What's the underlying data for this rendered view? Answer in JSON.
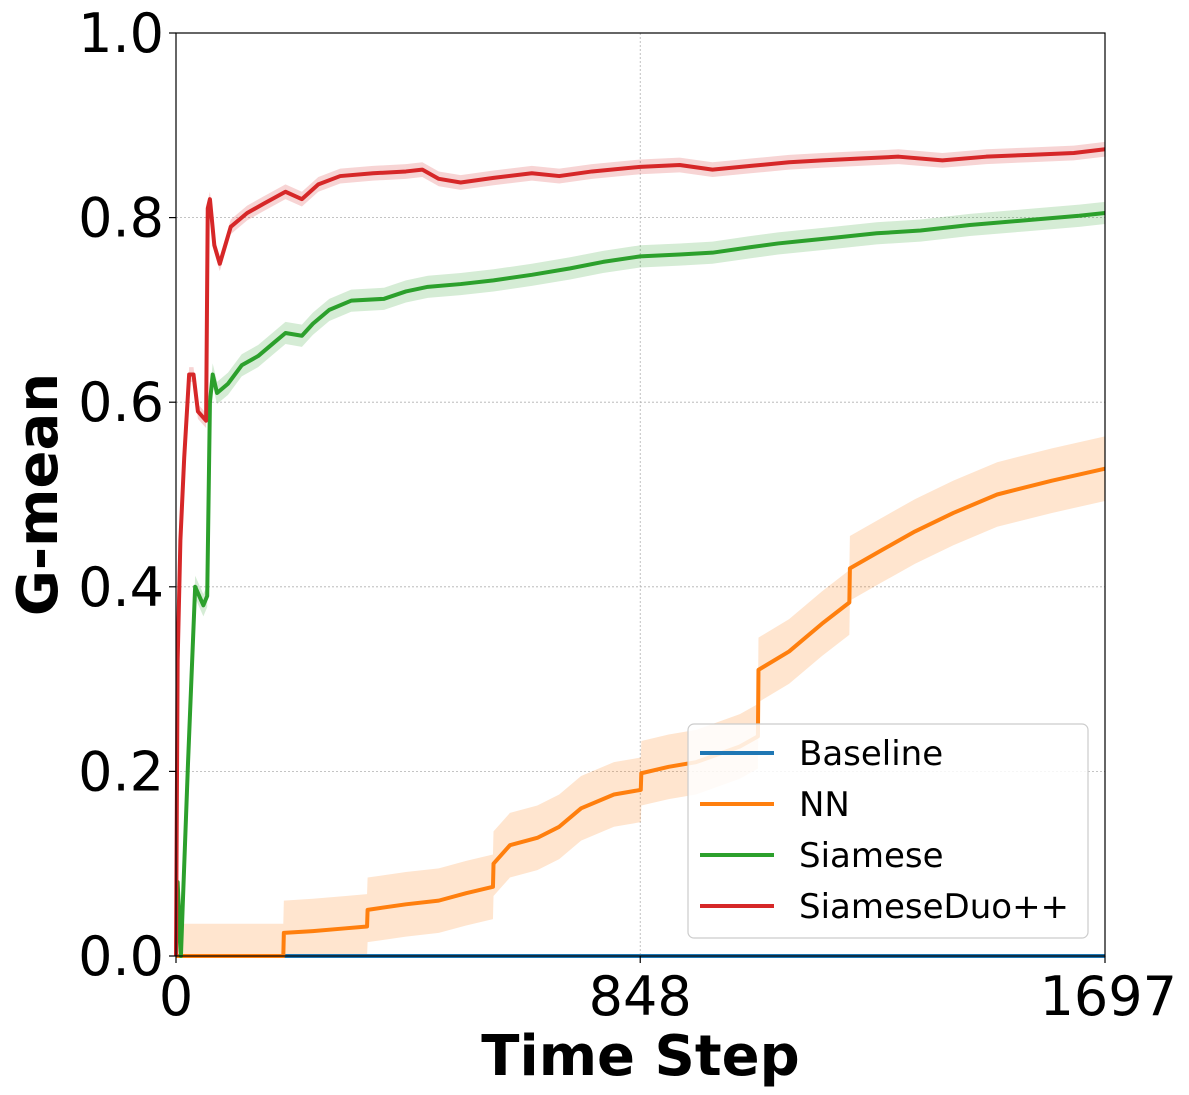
{
  "chart_data": {
    "type": "line",
    "title": "",
    "xlabel": "Time Step",
    "ylabel": "G-mean",
    "xlim": [
      0,
      1697
    ],
    "ylim": [
      0,
      1.0
    ],
    "xticks": [
      0,
      848,
      1697
    ],
    "xtick_labels": [
      "0",
      "848",
      "1697"
    ],
    "yticks": [
      0,
      0.2,
      0.4,
      0.6,
      0.8,
      1.0
    ],
    "ytick_labels": [
      "0.0",
      "0.2",
      "0.4",
      "0.6",
      "0.8",
      "1.0"
    ],
    "grid": true,
    "legend_position": "lower-right",
    "series": [
      {
        "name": "Baseline",
        "color": "#1f77b4",
        "band": 0,
        "points": [
          [
            0,
            0.0
          ],
          [
            1697,
            0.0
          ]
        ]
      },
      {
        "name": "NN",
        "color": "#ff7f0e",
        "band": 0.035,
        "points": [
          [
            0,
            0.0
          ],
          [
            196,
            0.0
          ],
          [
            197,
            0.025
          ],
          [
            250,
            0.027
          ],
          [
            310,
            0.03
          ],
          [
            349,
            0.032
          ],
          [
            350,
            0.05
          ],
          [
            420,
            0.056
          ],
          [
            480,
            0.06
          ],
          [
            530,
            0.068
          ],
          [
            579,
            0.075
          ],
          [
            580,
            0.1
          ],
          [
            610,
            0.12
          ],
          [
            660,
            0.128
          ],
          [
            700,
            0.14
          ],
          [
            740,
            0.16
          ],
          [
            800,
            0.175
          ],
          [
            849,
            0.18
          ],
          [
            850,
            0.198
          ],
          [
            900,
            0.205
          ],
          [
            950,
            0.21
          ],
          [
            1030,
            0.227
          ],
          [
            1063,
            0.238
          ],
          [
            1064,
            0.31
          ],
          [
            1120,
            0.33
          ],
          [
            1180,
            0.36
          ],
          [
            1230,
            0.383
          ],
          [
            1231,
            0.42
          ],
          [
            1290,
            0.44
          ],
          [
            1350,
            0.46
          ],
          [
            1420,
            0.48
          ],
          [
            1500,
            0.5
          ],
          [
            1600,
            0.515
          ],
          [
            1697,
            0.528
          ]
        ]
      },
      {
        "name": "Siamese",
        "color": "#2ca02c",
        "band": 0.012,
        "points": [
          [
            0,
            0.0
          ],
          [
            3,
            0.08
          ],
          [
            9,
            0.0
          ],
          [
            12,
            0.05
          ],
          [
            22,
            0.21
          ],
          [
            35,
            0.4
          ],
          [
            50,
            0.38
          ],
          [
            57,
            0.39
          ],
          [
            62,
            0.6
          ],
          [
            67,
            0.63
          ],
          [
            75,
            0.61
          ],
          [
            95,
            0.62
          ],
          [
            120,
            0.64
          ],
          [
            150,
            0.65
          ],
          [
            180,
            0.665
          ],
          [
            200,
            0.675
          ],
          [
            230,
            0.672
          ],
          [
            250,
            0.685
          ],
          [
            280,
            0.7
          ],
          [
            320,
            0.71
          ],
          [
            380,
            0.712
          ],
          [
            420,
            0.72
          ],
          [
            460,
            0.725
          ],
          [
            520,
            0.728
          ],
          [
            580,
            0.732
          ],
          [
            650,
            0.738
          ],
          [
            720,
            0.745
          ],
          [
            780,
            0.752
          ],
          [
            848,
            0.758
          ],
          [
            920,
            0.76
          ],
          [
            980,
            0.762
          ],
          [
            1050,
            0.768
          ],
          [
            1100,
            0.772
          ],
          [
            1150,
            0.775
          ],
          [
            1200,
            0.778
          ],
          [
            1280,
            0.783
          ],
          [
            1360,
            0.786
          ],
          [
            1450,
            0.792
          ],
          [
            1550,
            0.797
          ],
          [
            1650,
            0.802
          ],
          [
            1697,
            0.805
          ]
        ]
      },
      {
        "name": "SiameseDuo++",
        "color": "#d62728",
        "band": 0.008,
        "points": [
          [
            0,
            0.0
          ],
          [
            3,
            0.32
          ],
          [
            8,
            0.45
          ],
          [
            15,
            0.54
          ],
          [
            24,
            0.63
          ],
          [
            32,
            0.63
          ],
          [
            40,
            0.59
          ],
          [
            55,
            0.58
          ],
          [
            58,
            0.81
          ],
          [
            62,
            0.82
          ],
          [
            70,
            0.77
          ],
          [
            80,
            0.75
          ],
          [
            100,
            0.79
          ],
          [
            130,
            0.805
          ],
          [
            160,
            0.815
          ],
          [
            200,
            0.828
          ],
          [
            230,
            0.82
          ],
          [
            260,
            0.836
          ],
          [
            300,
            0.845
          ],
          [
            360,
            0.848
          ],
          [
            420,
            0.85
          ],
          [
            450,
            0.852
          ],
          [
            480,
            0.842
          ],
          [
            520,
            0.838
          ],
          [
            580,
            0.843
          ],
          [
            650,
            0.848
          ],
          [
            700,
            0.845
          ],
          [
            760,
            0.85
          ],
          [
            848,
            0.855
          ],
          [
            920,
            0.857
          ],
          [
            980,
            0.852
          ],
          [
            1050,
            0.856
          ],
          [
            1120,
            0.86
          ],
          [
            1180,
            0.862
          ],
          [
            1250,
            0.864
          ],
          [
            1320,
            0.866
          ],
          [
            1400,
            0.862
          ],
          [
            1480,
            0.866
          ],
          [
            1560,
            0.868
          ],
          [
            1640,
            0.87
          ],
          [
            1697,
            0.874
          ]
        ]
      }
    ]
  }
}
